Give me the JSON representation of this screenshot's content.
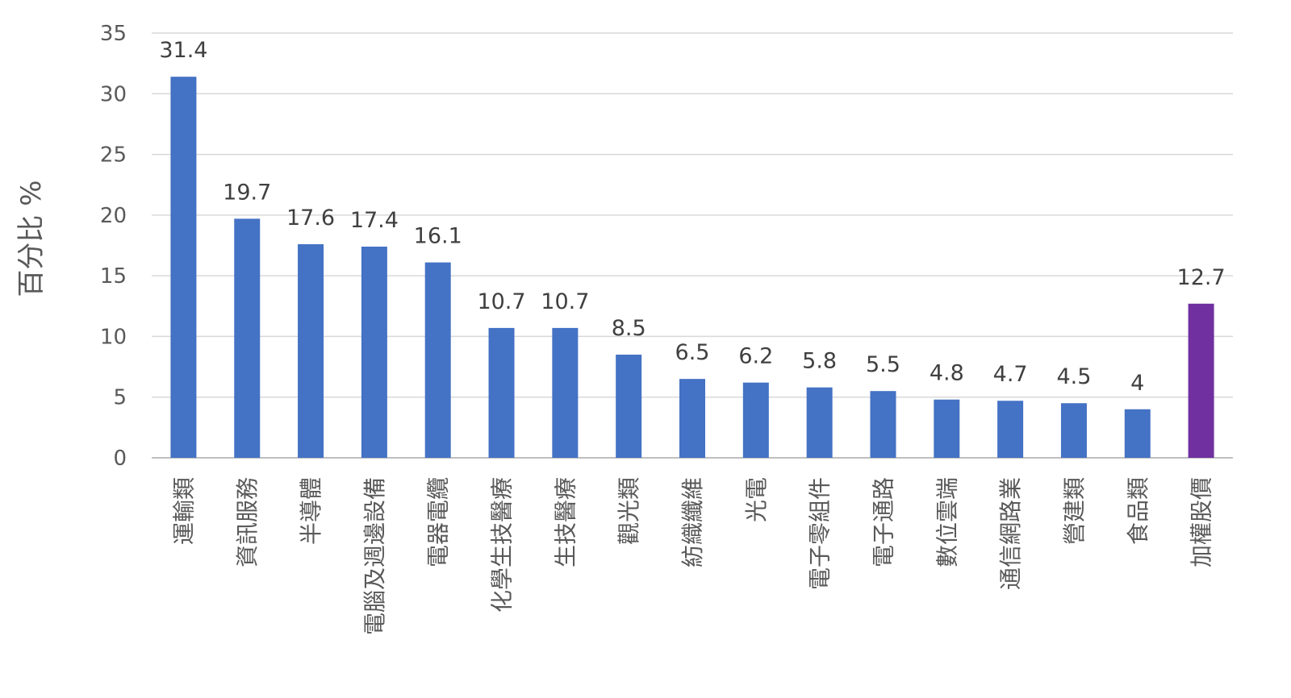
{
  "chart_data": {
    "type": "bar",
    "title": "",
    "xlabel": "",
    "ylabel": "百分比 %",
    "ylim": [
      0,
      35
    ],
    "yticks": [
      0,
      5,
      10,
      15,
      20,
      25,
      30,
      35
    ],
    "grid": true,
    "legend": "none",
    "categories": [
      "運輸類",
      "資訊服務",
      "半導體",
      "電腦及週邊設備",
      "電器電纜",
      "化學生技醫療",
      "生技醫療",
      "觀光類",
      "紡織纖維",
      "光電",
      "電子零組件",
      "電子通路",
      "數位雲端",
      "通信網路業",
      "營建類",
      "食品類",
      "加權股價"
    ],
    "values": [
      31.4,
      19.7,
      17.6,
      17.4,
      16.1,
      10.7,
      10.7,
      8.5,
      6.5,
      6.2,
      5.8,
      5.5,
      4.8,
      4.7,
      4.5,
      4,
      12.7
    ],
    "value_labels": [
      "31.4",
      "19.7",
      "17.6",
      "17.4",
      "16.1",
      "10.7",
      "10.7",
      "8.5",
      "6.5",
      "6.2",
      "5.8",
      "5.5",
      "4.8",
      "4.7",
      "4.5",
      "4",
      "12.7"
    ],
    "colors": {
      "default": "#4472C4",
      "highlight": "#7030A0",
      "highlight_category": "加權股價"
    }
  }
}
